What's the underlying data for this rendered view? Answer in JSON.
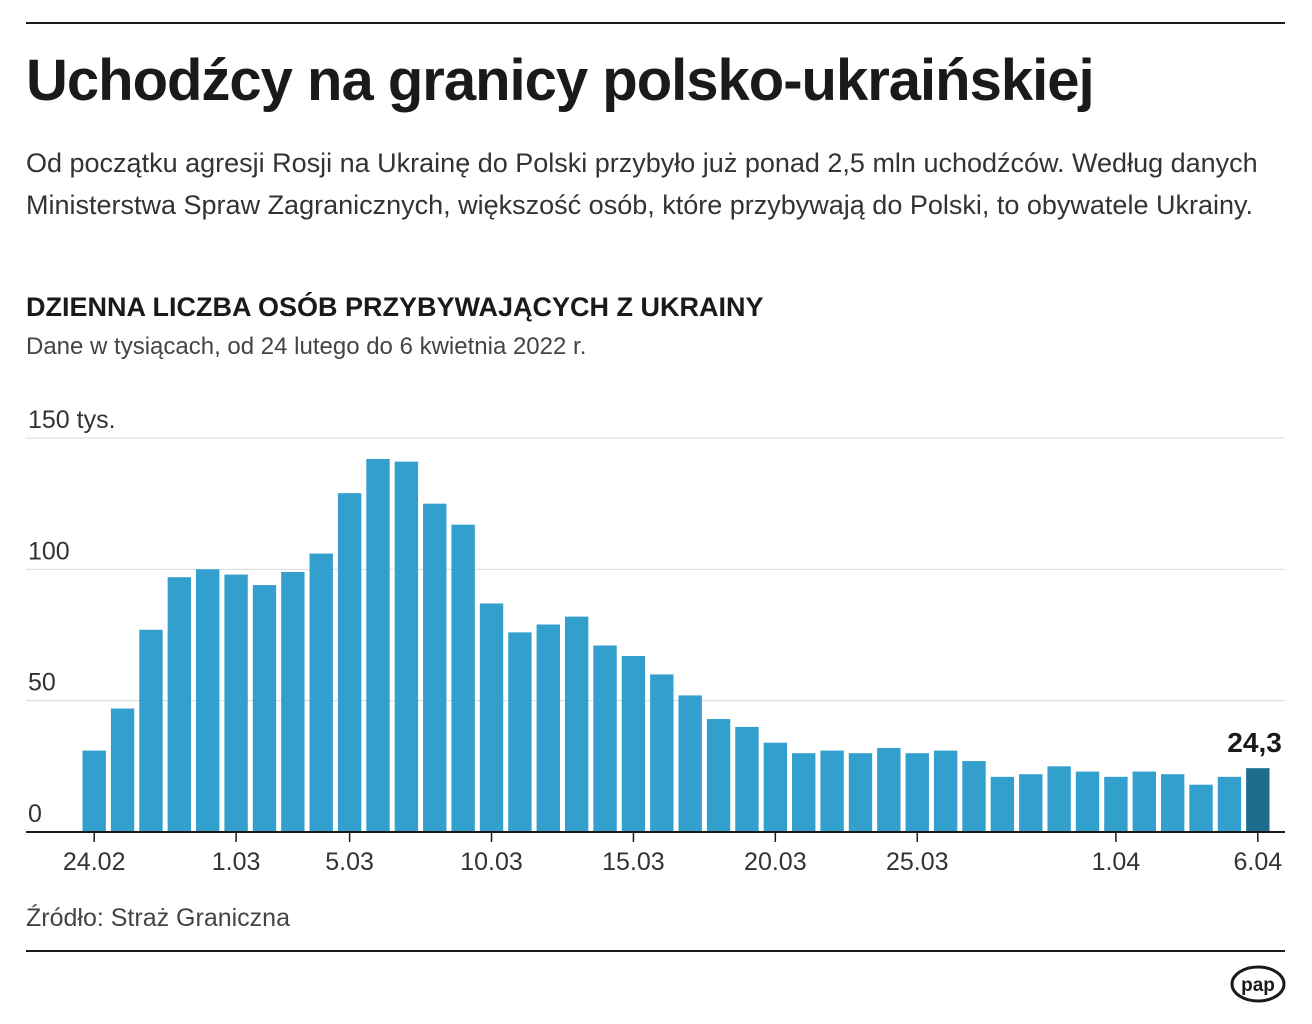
{
  "title": "Uchodźcy na granicy polsko-ukraińskiej",
  "intro": "Od początku agresji Rosji na Ukrainę do Polski przybyło już ponad 2,5 mln uchodźców. Według danych Ministerstwa Spraw Zagranicznych, większość osób, które przybywają do Polski, to obywatele Ukrainy.",
  "source": "Źródło: Straż Graniczna",
  "logo_text": "pap",
  "colors": {
    "bar": "#339fcd",
    "highlight": "#1f6d8c",
    "grid": "#d9d9d9",
    "axis": "#1a1a1a"
  },
  "chart_data": {
    "type": "bar",
    "title": "DZIENNA LICZBA OSÓB PRZYBYWAJĄCYCH Z UKRAINY",
    "subtitle": "Dane w tysiącach, od 24 lutego do 6 kwietnia 2022 r.",
    "xlabel": "",
    "ylabel": "",
    "ylim": [
      0,
      150
    ],
    "grid": true,
    "y_ticks": [
      {
        "value": 0,
        "label": "0"
      },
      {
        "value": 50,
        "label": "50"
      },
      {
        "value": 100,
        "label": "100"
      },
      {
        "value": 150,
        "label": "150 tys."
      }
    ],
    "categories": [
      "24.02",
      "25.02",
      "26.02",
      "27.02",
      "28.02",
      "1.03",
      "2.03",
      "3.03",
      "4.03",
      "5.03",
      "6.03",
      "7.03",
      "8.03",
      "9.03",
      "10.03",
      "11.03",
      "12.03",
      "13.03",
      "14.03",
      "15.03",
      "16.03",
      "17.03",
      "18.03",
      "19.03",
      "20.03",
      "21.03",
      "22.03",
      "23.03",
      "24.03",
      "25.03",
      "26.03",
      "27.03",
      "28.03",
      "29.03",
      "30.03",
      "31.03",
      "1.04",
      "2.04",
      "3.04",
      "4.04",
      "5.04",
      "6.04"
    ],
    "x_tick_labels": [
      {
        "index": 0,
        "label": "24.02"
      },
      {
        "index": 5,
        "label": "1.03"
      },
      {
        "index": 9,
        "label": "5.03"
      },
      {
        "index": 14,
        "label": "10.03"
      },
      {
        "index": 19,
        "label": "15.03"
      },
      {
        "index": 24,
        "label": "20.03"
      },
      {
        "index": 29,
        "label": "25.03"
      },
      {
        "index": 36,
        "label": "1.04"
      },
      {
        "index": 41,
        "label": "6.04"
      }
    ],
    "values": [
      31,
      47,
      77,
      97,
      100,
      98,
      94,
      99,
      106,
      129,
      142,
      141,
      125,
      117,
      87,
      76,
      79,
      82,
      71,
      67,
      60,
      52,
      43,
      40,
      34,
      30,
      31,
      30,
      32,
      30,
      31,
      27,
      21,
      22,
      25,
      23,
      21,
      23,
      22,
      18,
      21,
      24.3
    ],
    "highlight_index": 41,
    "annotation": "24,3"
  }
}
